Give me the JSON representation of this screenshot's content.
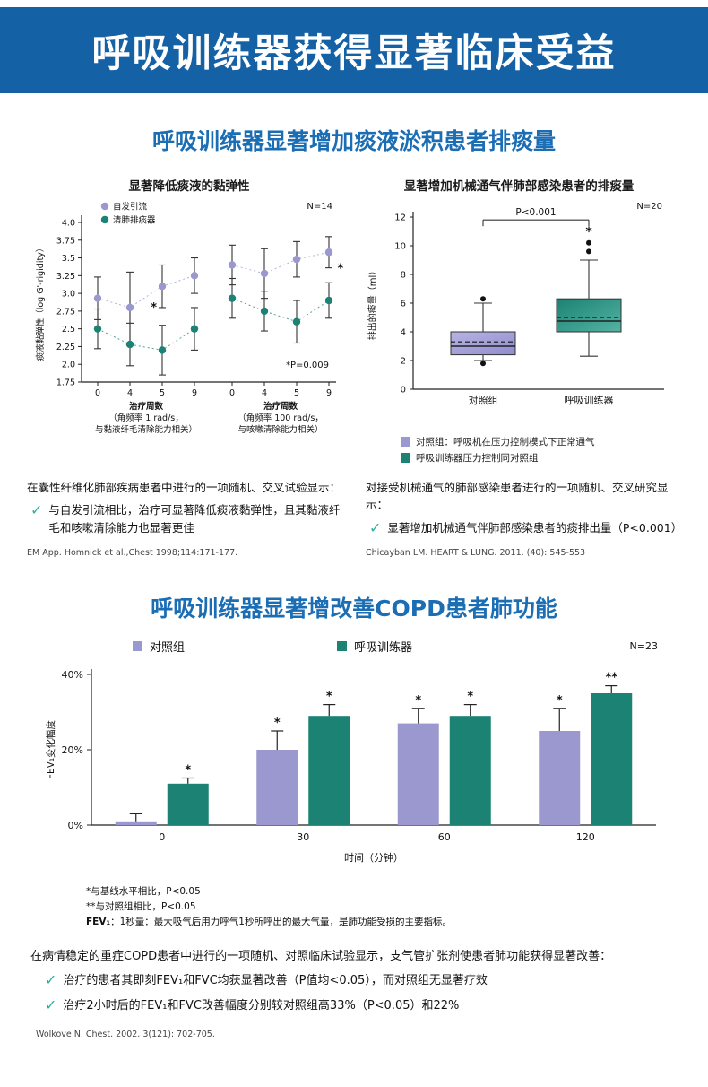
{
  "banner": {
    "title": "呼吸训练器获得显著临床受益"
  },
  "section1": {
    "title": "呼吸训练器显著增加痰液淤积患者排痰量",
    "left": {
      "note_intro": "在囊性纤维化肺部疾病患者中进行的一项随机、交叉试验显示：",
      "bullet": "与自发引流相比，治疗可显著降低痰液黏弹性，且其黏液纤毛和咳嗽清除能力也显著更佳",
      "citation": "EM App. Homnick et al.,Chest 1998;114:171-177."
    },
    "right": {
      "legend1": "对照组：呼吸机在压力控制模式下正常通气",
      "legend2": "呼吸训练器压力控制同对照组",
      "note_intro": "对接受机械通气的肺部感染患者进行的一项随机、交叉研究显示：",
      "bullet": "显著增加机械通气伴肺部感染患者的痰排出量（P<0.001）",
      "citation": "Chicayban LM. HEART & LUNG. 2011. (40): 545-553"
    }
  },
  "section2": {
    "title": "呼吸训练器显著增改善COPD患者肺功能",
    "footnotes": [
      "*与基线水平相比，P<0.05",
      "**与对照组相比，P<0.05"
    ],
    "fev_label": "FEV₁",
    "fev_rest": "：1秒量：最大吸气后用力呼气1秒所呼出的最大气量，是肺功能受损的主要指标。",
    "note_intro": "在病情稳定的重症COPD患者中进行的一项随机、对照临床试验显示，支气管扩张剂使患者肺功能获得显著改善：",
    "bullets": [
      "治疗的患者其即刻FEV₁和FVC均获显著改善（P值均<0.05），而对照组无显著疗效",
      "治疗2小时后的FEV₁和FVC改善幅度分别较对照组高33%（P<0.05）和22%"
    ],
    "citation": "Wolkove N. Chest. 2002. 3(121): 702-705."
  },
  "colors": {
    "purple": "#9b97cf",
    "teal": "#1b8274",
    "banner_blue": "#1461a5",
    "title_blue": "#1b6db4",
    "check_teal": "#2eb0a1"
  },
  "chart_data": [
    {
      "id": "viscoelasticity",
      "type": "scatter",
      "title": "显著降低痰液的黏弹性",
      "n_label": "N=14",
      "p_label": "*P=0.009",
      "ylabel": "痰液黏弹性（log G'-rigidity）",
      "ylim": [
        1.75,
        4.0
      ],
      "yticks": [
        "4.0",
        "3.75",
        "3.5",
        "3.25",
        "3.0",
        "2.75",
        "2.5",
        "2.25",
        "2.0",
        "1.75"
      ],
      "series_names": [
        "自发引流",
        "清肺排痰器"
      ],
      "series_colors": [
        "#9b97cf",
        "#1b8274"
      ],
      "groups": [
        {
          "xticks": [
            "0",
            "4",
            "5",
            "9"
          ],
          "xlabel_lines": [
            "治疗周数",
            "（角频率 1 rad/s，",
            "与黏液纤毛清除能力相关）"
          ],
          "series": [
            {
              "values": [
                2.93,
                2.8,
                3.1,
                3.25
              ],
              "err": [
                0.3,
                0.5,
                0.3,
                0.25
              ]
            },
            {
              "values": [
                2.5,
                2.28,
                2.2,
                2.5
              ],
              "err": [
                0.28,
                0.3,
                0.35,
                0.3
              ]
            }
          ],
          "star": {
            "fx": 0.58,
            "value": 2.75
          }
        },
        {
          "xticks": [
            "0",
            "4",
            "5",
            "9"
          ],
          "xlabel_lines": [
            "治疗周数",
            "（角频率 100 rad/s，",
            "与咳嗽清除能力相关）"
          ],
          "series": [
            {
              "values": [
                3.4,
                3.28,
                3.48,
                3.58
              ],
              "err": [
                0.28,
                0.35,
                0.25,
                0.22
              ]
            },
            {
              "values": [
                2.93,
                2.75,
                2.6,
                2.9
              ],
              "err": [
                0.28,
                0.28,
                0.3,
                0.25
              ]
            }
          ],
          "star": {
            "fx": 1.12,
            "value": 3.3
          }
        }
      ]
    },
    {
      "id": "sputum-volume",
      "type": "box",
      "title": "显著增加机械通气伴肺部感染患者的排痰量",
      "n_label": "N=20",
      "p_label": "P<0.001",
      "ylabel": "排出的痰量（ml）",
      "ylim": [
        0,
        12
      ],
      "yticks": [
        "0",
        "2",
        "4",
        "6",
        "8",
        "10",
        "12"
      ],
      "boxes": [
        {
          "label": "对照组",
          "color_top": "#b7b4e3",
          "color_bottom": "#908cce",
          "q1": 2.4,
          "q3": 4.0,
          "median": 3.0,
          "mean": 3.3,
          "whisker_low": 2.0,
          "whisker_high": 6.0,
          "outliers": [
            1.8,
            6.3
          ]
        },
        {
          "label": "呼吸训练器",
          "color_top": "#1b8274",
          "color_bottom": "#55b3a3",
          "q1": 4.0,
          "q3": 6.3,
          "median": 4.75,
          "mean": 5.0,
          "whisker_low": 2.3,
          "whisker_high": 9.0,
          "outliers": [
            9.6,
            10.2
          ],
          "star_y": 10.7
        }
      ]
    },
    {
      "id": "fev1-change",
      "type": "bar",
      "n_label": "N=23",
      "ylabel": "FEV₁变化幅度",
      "xlabel": "时间（分钟）",
      "categories": [
        "0",
        "30",
        "60",
        "120"
      ],
      "ylim": [
        0,
        40
      ],
      "yticks": [
        {
          "v": 0,
          "label": "0%"
        },
        {
          "v": 20,
          "label": "20%"
        },
        {
          "v": 40,
          "label": "40%"
        }
      ],
      "series": [
        {
          "name": "对照组",
          "color": "#9b97cf",
          "values": [
            1,
            20,
            27,
            25
          ],
          "err": [
            2,
            5,
            4,
            6
          ],
          "stars": [
            "",
            "*",
            "*",
            "*"
          ]
        },
        {
          "name": "呼吸训练器",
          "color": "#1b8274",
          "values": [
            11,
            29,
            29,
            35
          ],
          "err": [
            1.5,
            3,
            3,
            2
          ],
          "stars": [
            "*",
            "*",
            "*",
            "**"
          ]
        }
      ]
    }
  ]
}
